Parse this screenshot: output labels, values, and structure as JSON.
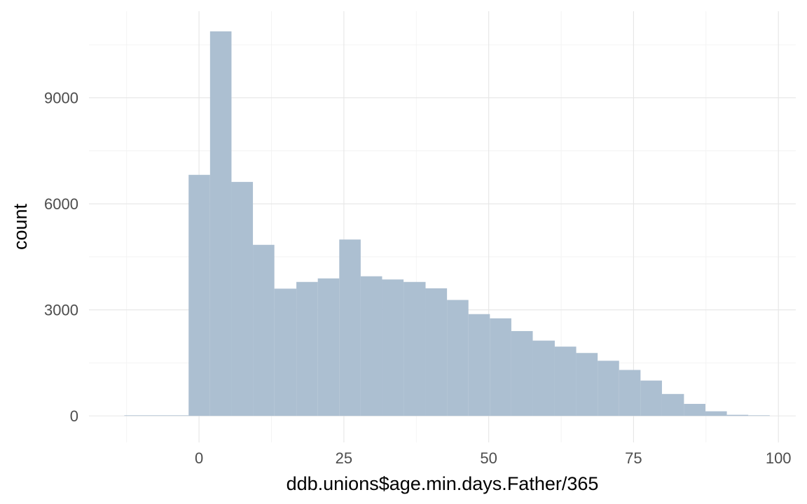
{
  "chart_data": {
    "type": "bar",
    "subtype": "histogram",
    "title": "",
    "xlabel": "ddb.unions$age.min.days.Father/365",
    "ylabel": "count",
    "xlim": [
      -19,
      103
    ],
    "ylim": [
      -750,
      11450
    ],
    "x_ticks": [
      0,
      25,
      50,
      75,
      100
    ],
    "x_tick_labels": [
      "0",
      "25",
      "50",
      "75",
      "100"
    ],
    "y_ticks": [
      0,
      3000,
      6000,
      9000
    ],
    "y_tick_labels": [
      "0",
      "3000",
      "6000",
      "9000"
    ],
    "grid": true,
    "legend": "none",
    "bar_color": "#a9bdd0",
    "bins": [
      {
        "x0": -12.9,
        "x1": -9.2,
        "count": 5
      },
      {
        "x0": -9.2,
        "x1": -5.5,
        "count": 5
      },
      {
        "x0": -5.5,
        "x1": -1.8,
        "count": 10
      },
      {
        "x0": -1.8,
        "x1": 1.9,
        "count": 6820
      },
      {
        "x0": 1.9,
        "x1": 5.6,
        "count": 10880
      },
      {
        "x0": 5.6,
        "x1": 9.3,
        "count": 6620
      },
      {
        "x0": 9.3,
        "x1": 13.0,
        "count": 4840
      },
      {
        "x0": 13.0,
        "x1": 16.8,
        "count": 3600
      },
      {
        "x0": 16.8,
        "x1": 20.5,
        "count": 3790
      },
      {
        "x0": 20.5,
        "x1": 24.2,
        "count": 3890
      },
      {
        "x0": 24.2,
        "x1": 27.9,
        "count": 4990
      },
      {
        "x0": 27.9,
        "x1": 31.6,
        "count": 3950
      },
      {
        "x0": 31.6,
        "x1": 35.3,
        "count": 3860
      },
      {
        "x0": 35.3,
        "x1": 39.1,
        "count": 3790
      },
      {
        "x0": 39.1,
        "x1": 42.8,
        "count": 3610
      },
      {
        "x0": 42.8,
        "x1": 46.5,
        "count": 3280
      },
      {
        "x0": 46.5,
        "x1": 50.2,
        "count": 2880
      },
      {
        "x0": 50.2,
        "x1": 53.9,
        "count": 2760
      },
      {
        "x0": 53.9,
        "x1": 57.6,
        "count": 2400
      },
      {
        "x0": 57.6,
        "x1": 61.4,
        "count": 2130
      },
      {
        "x0": 61.4,
        "x1": 65.1,
        "count": 1960
      },
      {
        "x0": 65.1,
        "x1": 68.8,
        "count": 1780
      },
      {
        "x0": 68.8,
        "x1": 72.5,
        "count": 1560
      },
      {
        "x0": 72.5,
        "x1": 76.2,
        "count": 1300
      },
      {
        "x0": 76.2,
        "x1": 79.9,
        "count": 1000
      },
      {
        "x0": 79.9,
        "x1": 83.7,
        "count": 620
      },
      {
        "x0": 83.7,
        "x1": 87.4,
        "count": 340
      },
      {
        "x0": 87.4,
        "x1": 91.1,
        "count": 130
      },
      {
        "x0": 91.1,
        "x1": 94.8,
        "count": 30
      },
      {
        "x0": 94.8,
        "x1": 98.5,
        "count": 5
      }
    ]
  }
}
